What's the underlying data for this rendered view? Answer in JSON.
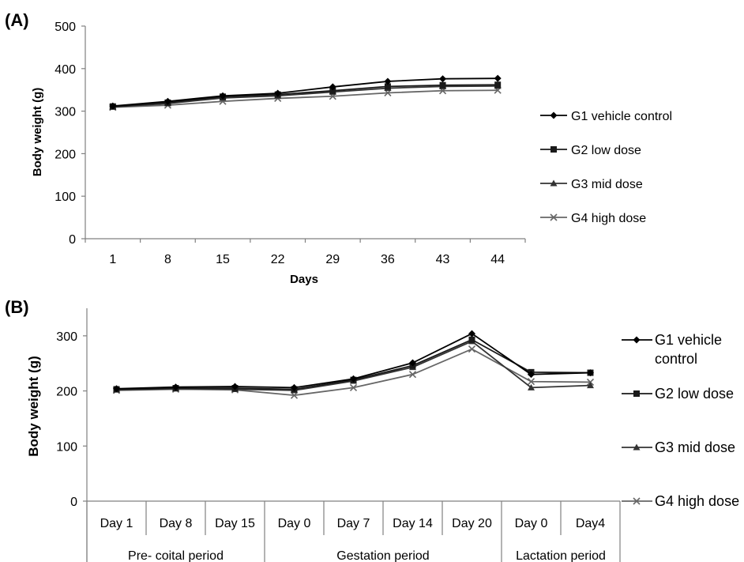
{
  "panels": {
    "a_label": "(A)",
    "b_label": "(B)"
  },
  "chart_data": [
    {
      "type": "line",
      "panel": "(A)",
      "xlabel": "Days",
      "ylabel": "Body weight (g)",
      "ylim": [
        0,
        500
      ],
      "yticks": [
        0,
        100,
        200,
        300,
        400,
        500
      ],
      "categories": [
        "1",
        "8",
        "15",
        "22",
        "29",
        "36",
        "43",
        "44"
      ],
      "legend_position": "right",
      "series": [
        {
          "name": "G1 vehicle control",
          "marker": "diamond",
          "color": "#000000",
          "values": [
            312,
            323,
            336,
            342,
            357,
            370,
            376,
            377
          ]
        },
        {
          "name": "G2 low dose",
          "marker": "square",
          "color": "#1a1a1a",
          "values": [
            311,
            320,
            334,
            339,
            348,
            358,
            361,
            362
          ]
        },
        {
          "name": "G3 mid dose",
          "marker": "triangle",
          "color": "#333333",
          "values": [
            310,
            318,
            331,
            336,
            345,
            354,
            358,
            359
          ]
        },
        {
          "name": "G4 high dose",
          "marker": "x",
          "color": "#666666",
          "values": [
            309,
            314,
            323,
            330,
            335,
            343,
            348,
            349
          ]
        }
      ]
    },
    {
      "type": "line",
      "panel": "(B)",
      "xlabel": "",
      "ylabel": "Body weight (g)",
      "ylim": [
        0,
        350
      ],
      "yticks": [
        0,
        100,
        200,
        300
      ],
      "categories": [
        "Day 1",
        "Day 8",
        "Day 15",
        "Day 0",
        "Day 7",
        "Day 14",
        "Day 20",
        "Day 0",
        "Day4"
      ],
      "groups": [
        {
          "label": "Pre- coital period",
          "span": [
            0,
            3
          ]
        },
        {
          "label": "Gestation period",
          "span": [
            3,
            7
          ]
        },
        {
          "label": "Lactation period",
          "span": [
            7,
            9
          ]
        }
      ],
      "legend_position": "right",
      "legend_labels": [
        [
          "G1 vehicle",
          "control"
        ],
        [
          "G2 low dose"
        ],
        [
          "G3 mid dose"
        ],
        [
          "G4 high dose"
        ]
      ],
      "series": [
        {
          "name": "G1 vehicle control",
          "marker": "diamond",
          "color": "#000000",
          "values": [
            204,
            207,
            208,
            206,
            222,
            251,
            304,
            230,
            233
          ]
        },
        {
          "name": "G2 low dose",
          "marker": "square",
          "color": "#1a1a1a",
          "values": [
            203,
            205,
            205,
            203,
            220,
            246,
            293,
            234,
            233
          ]
        },
        {
          "name": "G3 mid dose",
          "marker": "triangle",
          "color": "#333333",
          "values": [
            202,
            204,
            203,
            201,
            218,
            243,
            290,
            206,
            210
          ]
        },
        {
          "name": "G4 high dose",
          "marker": "x",
          "color": "#666666",
          "values": [
            201,
            203,
            202,
            192,
            206,
            230,
            276,
            217,
            216
          ]
        }
      ]
    }
  ]
}
